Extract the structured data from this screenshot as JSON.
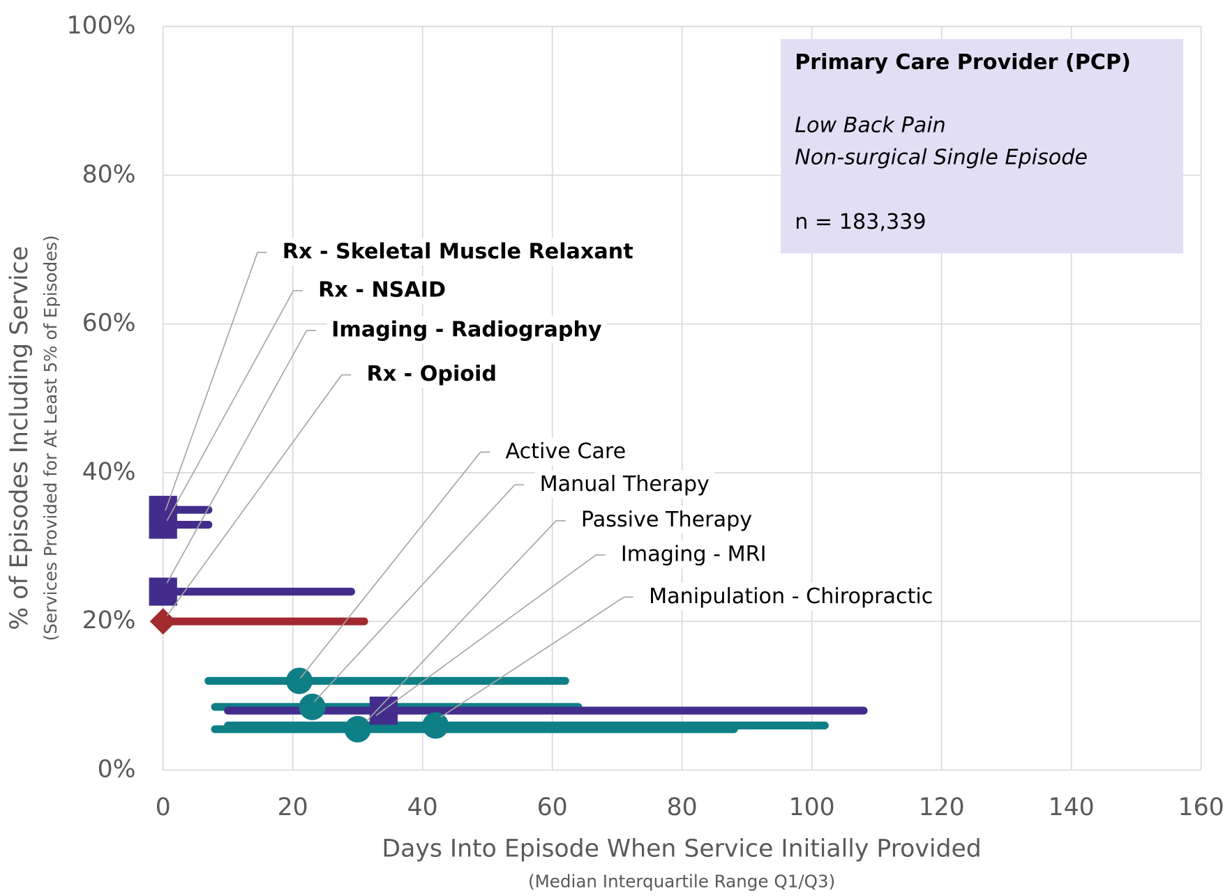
{
  "chart_data": {
    "type": "range-scatter",
    "x_label": "Days Into Episode When Service Initially Provided",
    "x_sublabel": "(Median Interquartile Range Q1/Q3)",
    "y_label": "% of Episodes Including Service",
    "y_sublabel": "(Services Provided for At Least 5% of Episodes)",
    "xlim": [
      0,
      160
    ],
    "xticks": [
      0,
      20,
      40,
      60,
      80,
      100,
      120,
      140,
      160
    ],
    "ylim": [
      0,
      100
    ],
    "yticks": [
      {
        "value": 0,
        "label": "0%"
      },
      {
        "value": 20,
        "label": "20%"
      },
      {
        "value": 40,
        "label": "40%"
      },
      {
        "value": 60,
        "label": "60%"
      },
      {
        "value": 80,
        "label": "80%"
      },
      {
        "value": 100,
        "label": "100%"
      }
    ],
    "grid": true,
    "info_box": {
      "title": "Primary Care Provider (PCP)",
      "lines": [
        "Low Back Pain",
        "Non-surgical Single Episode"
      ],
      "note": "n = 183,339"
    },
    "series": [
      {
        "name": "Rx - Skeletal Muscle Relaxant",
        "color": "#432d8c",
        "marker": "square",
        "x": 0,
        "y": 35,
        "q1": 0,
        "q3": 7
      },
      {
        "name": "Rx - NSAID",
        "color": "#432d8c",
        "marker": "square",
        "x": 0,
        "y": 33,
        "q1": 0,
        "q3": 7
      },
      {
        "name": "Imaging - Radiography",
        "color": "#432d8c",
        "marker": "square",
        "x": 0,
        "y": 24,
        "q1": 0,
        "q3": 29
      },
      {
        "name": "Rx - Opioid",
        "color": "#a12a2f",
        "marker": "diamond",
        "x": 0,
        "y": 20,
        "q1": 0,
        "q3": 31
      },
      {
        "name": "Active Care",
        "color": "#0f7f86",
        "marker": "circle",
        "x": 21,
        "y": 12,
        "q1": 7,
        "q3": 62
      },
      {
        "name": "Manual Therapy",
        "color": "#0f7f86",
        "marker": "circle",
        "x": 23,
        "y": 8.5,
        "q1": 8,
        "q3": 64
      },
      {
        "name": "Passive Therapy",
        "color": "#0f7f86",
        "marker": "circle",
        "x": 30,
        "y": 5.5,
        "q1": 8,
        "q3": 88
      },
      {
        "name": "Imaging - MRI",
        "color": "#432d8c",
        "marker": "square",
        "x": 34,
        "y": 8,
        "q1": 10,
        "q3": 108
      },
      {
        "name": "Manipulation - Chiropractic",
        "color": "#0f7f86",
        "marker": "circle",
        "x": 42,
        "y": 6,
        "q1": 10,
        "q3": 102
      }
    ]
  }
}
